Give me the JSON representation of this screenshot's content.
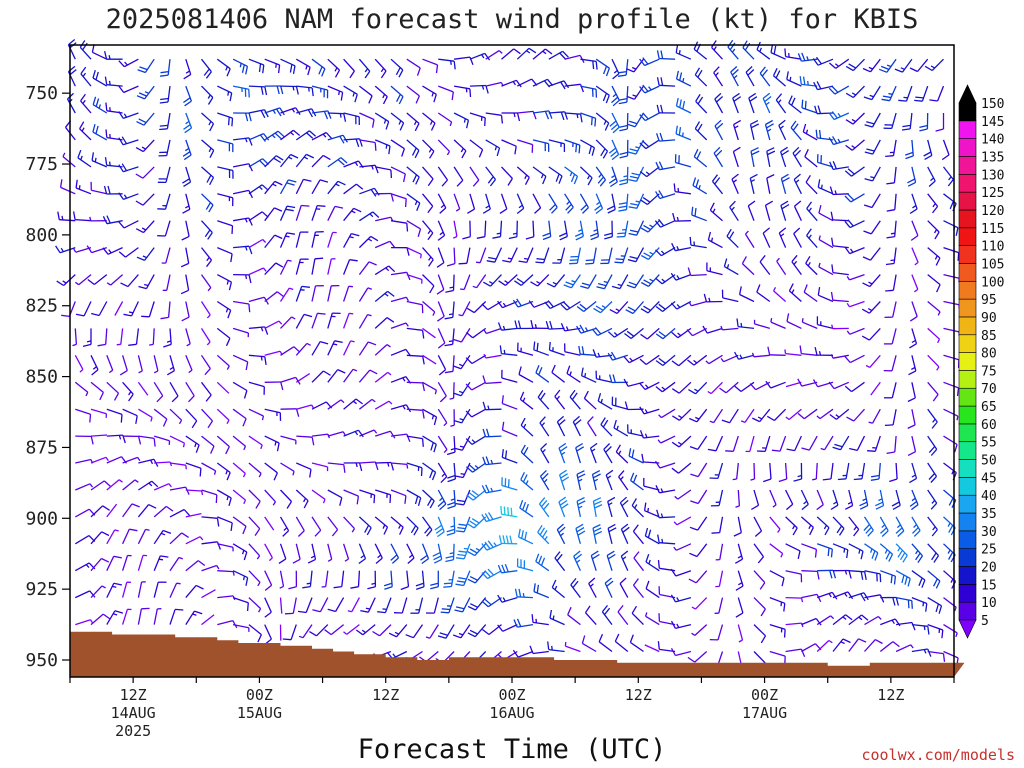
{
  "chart_data": {
    "type": "wind_barb_profile",
    "title": "2025081406 NAM forecast wind profile (kt) for KBIS",
    "xlabel": "Forecast Time (UTC)",
    "credit": "coolwx.com/models",
    "y_ticks": [
      750,
      775,
      800,
      825,
      850,
      875,
      900,
      925,
      950
    ],
    "ylim": [
      733,
      956
    ],
    "x_ticks": [
      {
        "hour": 6,
        "label": "12Z",
        "sub1": "14AUG",
        "sub2": "2025"
      },
      {
        "hour": 18,
        "label": "00Z",
        "sub1": "15AUG",
        "sub2": ""
      },
      {
        "hour": 30,
        "label": "12Z",
        "sub1": "",
        "sub2": ""
      },
      {
        "hour": 42,
        "label": "00Z",
        "sub1": "16AUG",
        "sub2": ""
      },
      {
        "hour": 54,
        "label": "12Z",
        "sub1": "",
        "sub2": ""
      },
      {
        "hour": 66,
        "label": "00Z",
        "sub1": "17AUG",
        "sub2": ""
      },
      {
        "hour": 78,
        "label": "12Z",
        "sub1": "",
        "sub2": ""
      }
    ],
    "xlim": [
      0,
      84
    ],
    "terrain_color": "#a0522d",
    "terrain_pressure": [
      940,
      940,
      940,
      940,
      941,
      941,
      941,
      941,
      941,
      941,
      942,
      942,
      942,
      942,
      943,
      943,
      944,
      944,
      944,
      944,
      945,
      945,
      945,
      946,
      946,
      947,
      947,
      948,
      948,
      948,
      949,
      949,
      949,
      950,
      950,
      950,
      949,
      949,
      949,
      949,
      949,
      949,
      949,
      949,
      949,
      949,
      950,
      950,
      950,
      950,
      950,
      950,
      951,
      951,
      951,
      951,
      951,
      951,
      951,
      951,
      951,
      951,
      951,
      951,
      951,
      951,
      951,
      951,
      951,
      951,
      951,
      951,
      952,
      952,
      952,
      952,
      951,
      951,
      951,
      951,
      951,
      951,
      951,
      951,
      951
    ],
    "colorbar": {
      "levels": [
        5,
        10,
        15,
        20,
        25,
        30,
        35,
        40,
        45,
        50,
        55,
        60,
        65,
        70,
        75,
        80,
        85,
        90,
        95,
        100,
        105,
        110,
        115,
        120,
        125,
        130,
        135,
        140,
        145,
        150
      ],
      "colors": [
        "#7f00ff",
        "#5a00e6",
        "#2e00d6",
        "#1414cc",
        "#0a3ad6",
        "#0a5ce6",
        "#1482f0",
        "#1aa6f0",
        "#14c8e0",
        "#14e0c0",
        "#14e68a",
        "#1ee650",
        "#28e61e",
        "#64e614",
        "#b4f014",
        "#e6f014",
        "#f0d214",
        "#f0b414",
        "#f0961e",
        "#f07a1e",
        "#f05a1e",
        "#f0321e",
        "#f01414",
        "#e6141e",
        "#e61446",
        "#f0146e",
        "#f01496",
        "#f014c8",
        "#f014f0",
        "#000000"
      ]
    }
  }
}
